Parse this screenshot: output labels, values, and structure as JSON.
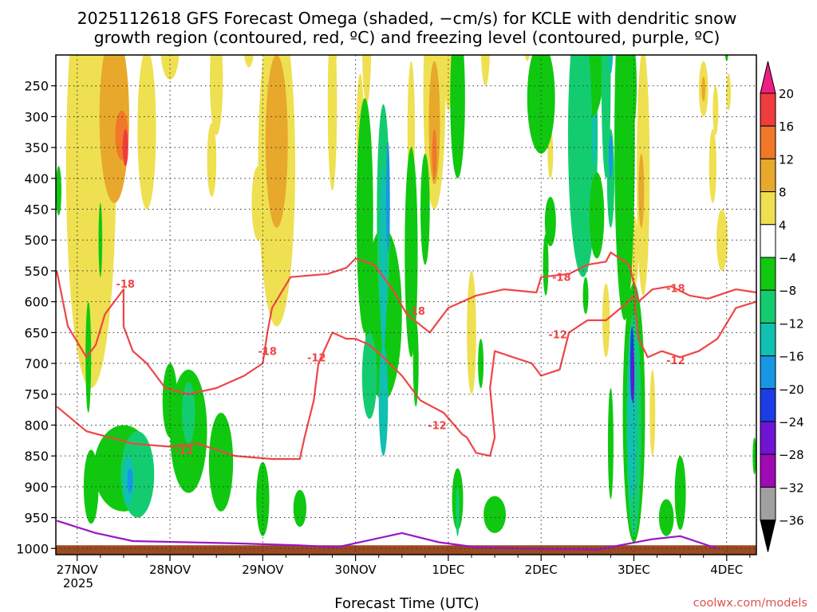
{
  "chart_data": {
    "type": "heatmap",
    "title_line1": "2025112618 GFS Forecast Omega (shaded, −cm/s) for KCLE with dendritic snow",
    "title_line2": "growth region (contoured, red, ºC) and freezing level (contoured, purple, ºC)",
    "xlabel": "Forecast Time (UTC)",
    "credit": "coolwx.com/models",
    "x_ticks": [
      {
        "label": "27NOV",
        "day": 0
      },
      {
        "label": "28NOV",
        "day": 1
      },
      {
        "label": "29NOV",
        "day": 2
      },
      {
        "label": "30NOV",
        "day": 3
      },
      {
        "label": "1DEC",
        "day": 4
      },
      {
        "label": "2DEC",
        "day": 5
      },
      {
        "label": "3DEC",
        "day": 6
      },
      {
        "label": "4DEC",
        "day": 7
      }
    ],
    "year_label": "2025",
    "x_range_days": [
      -0.23,
      7.32
    ],
    "y_ticks": [
      250,
      300,
      350,
      400,
      450,
      500,
      550,
      600,
      650,
      700,
      750,
      800,
      850,
      900,
      950,
      1000
    ],
    "y_range_hpa": [
      200,
      1010
    ],
    "colorbar": {
      "levels": [
        -36,
        -32,
        -28,
        -24,
        -20,
        -16,
        -12,
        -8,
        -4,
        4,
        8,
        12,
        16,
        20
      ],
      "labels": [
        "20",
        "16",
        "12",
        "8",
        "4",
        "−4",
        "−8",
        "−12",
        "−16",
        "−20",
        "−24",
        "−28",
        "−32",
        "−36"
      ],
      "colors": {
        "gt20": "#ee1e82",
        "16_20": "#f03c3c",
        "12_16": "#f07828",
        "8_12": "#e8a82c",
        "4_8": "#eee050",
        "m4_4": "#ffffff",
        "m8_m4": "#10c810",
        "m12_m8": "#14cc70",
        "m16_m12": "#10c0b0",
        "m20_m16": "#1896e6",
        "m24_m20": "#1c3ce6",
        "m28_m24": "#6e14d2",
        "m32_m28": "#a00ab4",
        "m36_m32": "#a0a0a0",
        "lt36": "#000000"
      }
    },
    "contour_labels": [
      {
        "text": "-18",
        "day": 0.52,
        "p": 571
      },
      {
        "text": "-12",
        "day": 1.15,
        "p": 840
      },
      {
        "text": "-18",
        "day": 2.05,
        "p": 680
      },
      {
        "text": "-12",
        "day": 2.58,
        "p": 690
      },
      {
        "text": "-18",
        "day": 3.65,
        "p": 615
      },
      {
        "text": "-12",
        "day": 3.88,
        "p": 800
      },
      {
        "text": "-18",
        "day": 5.22,
        "p": 560
      },
      {
        "text": "-12",
        "day": 5.18,
        "p": 653
      },
      {
        "text": "-18",
        "day": 6.45,
        "p": 578
      },
      {
        "text": "-12",
        "day": 6.45,
        "p": 695
      }
    ],
    "series": [
      {
        "name": "dgz -12C",
        "color": "#f04545",
        "points": [
          [
            -0.22,
            770
          ],
          [
            0.1,
            810
          ],
          [
            0.6,
            830
          ],
          [
            1.0,
            835
          ],
          [
            1.3,
            830
          ],
          [
            1.7,
            850
          ],
          [
            2.1,
            855
          ],
          [
            2.4,
            855
          ],
          [
            2.45,
            820
          ],
          [
            2.55,
            760
          ],
          [
            2.6,
            700
          ],
          [
            2.75,
            650
          ],
          [
            2.9,
            660
          ],
          [
            3.0,
            660
          ],
          [
            3.15,
            670
          ],
          [
            3.3,
            690
          ],
          [
            3.5,
            720
          ],
          [
            3.7,
            760
          ],
          [
            3.95,
            780
          ],
          [
            4.15,
            815
          ],
          [
            4.2,
            820
          ],
          [
            4.3,
            845
          ],
          [
            4.45,
            850
          ],
          [
            4.5,
            820
          ],
          [
            4.45,
            740
          ],
          [
            4.5,
            680
          ],
          [
            4.7,
            690
          ],
          [
            4.9,
            700
          ],
          [
            5.0,
            720
          ],
          [
            5.2,
            710
          ],
          [
            5.3,
            650
          ],
          [
            5.5,
            630
          ],
          [
            5.7,
            630
          ],
          [
            5.9,
            605
          ],
          [
            6.0,
            590
          ],
          [
            6.05,
            660
          ],
          [
            6.15,
            690
          ],
          [
            6.3,
            680
          ],
          [
            6.5,
            690
          ],
          [
            6.7,
            680
          ],
          [
            6.9,
            660
          ],
          [
            7.1,
            610
          ],
          [
            7.32,
            600
          ]
        ]
      },
      {
        "name": "dgz -18C",
        "color": "#f04545",
        "points": [
          [
            -0.22,
            550
          ],
          [
            -0.1,
            640
          ],
          [
            0.1,
            690
          ],
          [
            0.2,
            670
          ],
          [
            0.3,
            620
          ],
          [
            0.45,
            590
          ],
          [
            0.5,
            580
          ],
          [
            0.5,
            640
          ],
          [
            0.6,
            680
          ],
          [
            0.75,
            700
          ],
          [
            0.95,
            740
          ],
          [
            1.2,
            750
          ],
          [
            1.5,
            740
          ],
          [
            1.8,
            720
          ],
          [
            2.0,
            700
          ],
          [
            2.05,
            650
          ],
          [
            2.1,
            610
          ],
          [
            2.3,
            560
          ],
          [
            2.7,
            555
          ],
          [
            2.9,
            545
          ],
          [
            3.0,
            530
          ],
          [
            3.2,
            540
          ],
          [
            3.4,
            580
          ],
          [
            3.55,
            620
          ],
          [
            3.8,
            650
          ],
          [
            4.0,
            610
          ],
          [
            4.3,
            590
          ],
          [
            4.6,
            580
          ],
          [
            4.95,
            585
          ],
          [
            5.0,
            560
          ],
          [
            5.3,
            555
          ],
          [
            5.5,
            540
          ],
          [
            5.7,
            535
          ],
          [
            5.75,
            520
          ],
          [
            5.95,
            540
          ],
          [
            6.05,
            600
          ],
          [
            6.2,
            580
          ],
          [
            6.4,
            575
          ],
          [
            6.6,
            590
          ],
          [
            6.8,
            595
          ],
          [
            7.1,
            580
          ],
          [
            7.32,
            585
          ]
        ]
      },
      {
        "name": "freezing level 0C",
        "color": "#9a16c8",
        "points": [
          [
            -0.22,
            955
          ],
          [
            0.2,
            975
          ],
          [
            0.6,
            988
          ],
          [
            1.2,
            990
          ],
          [
            1.8,
            992
          ],
          [
            2.4,
            995
          ],
          [
            2.8,
            998
          ],
          [
            3.2,
            985
          ],
          [
            3.5,
            975
          ],
          [
            3.9,
            990
          ],
          [
            4.3,
            998
          ],
          [
            4.8,
            1000
          ],
          [
            5.6,
            1002
          ],
          [
            6.2,
            985
          ],
          [
            6.5,
            980
          ],
          [
            6.9,
            1000
          ]
        ]
      }
    ],
    "data_note": "Shaded omega fields (upward motion green/blue, subsidence yellow/orange) drawn as approximate blobs in data coordinates (day, hPa)."
  }
}
